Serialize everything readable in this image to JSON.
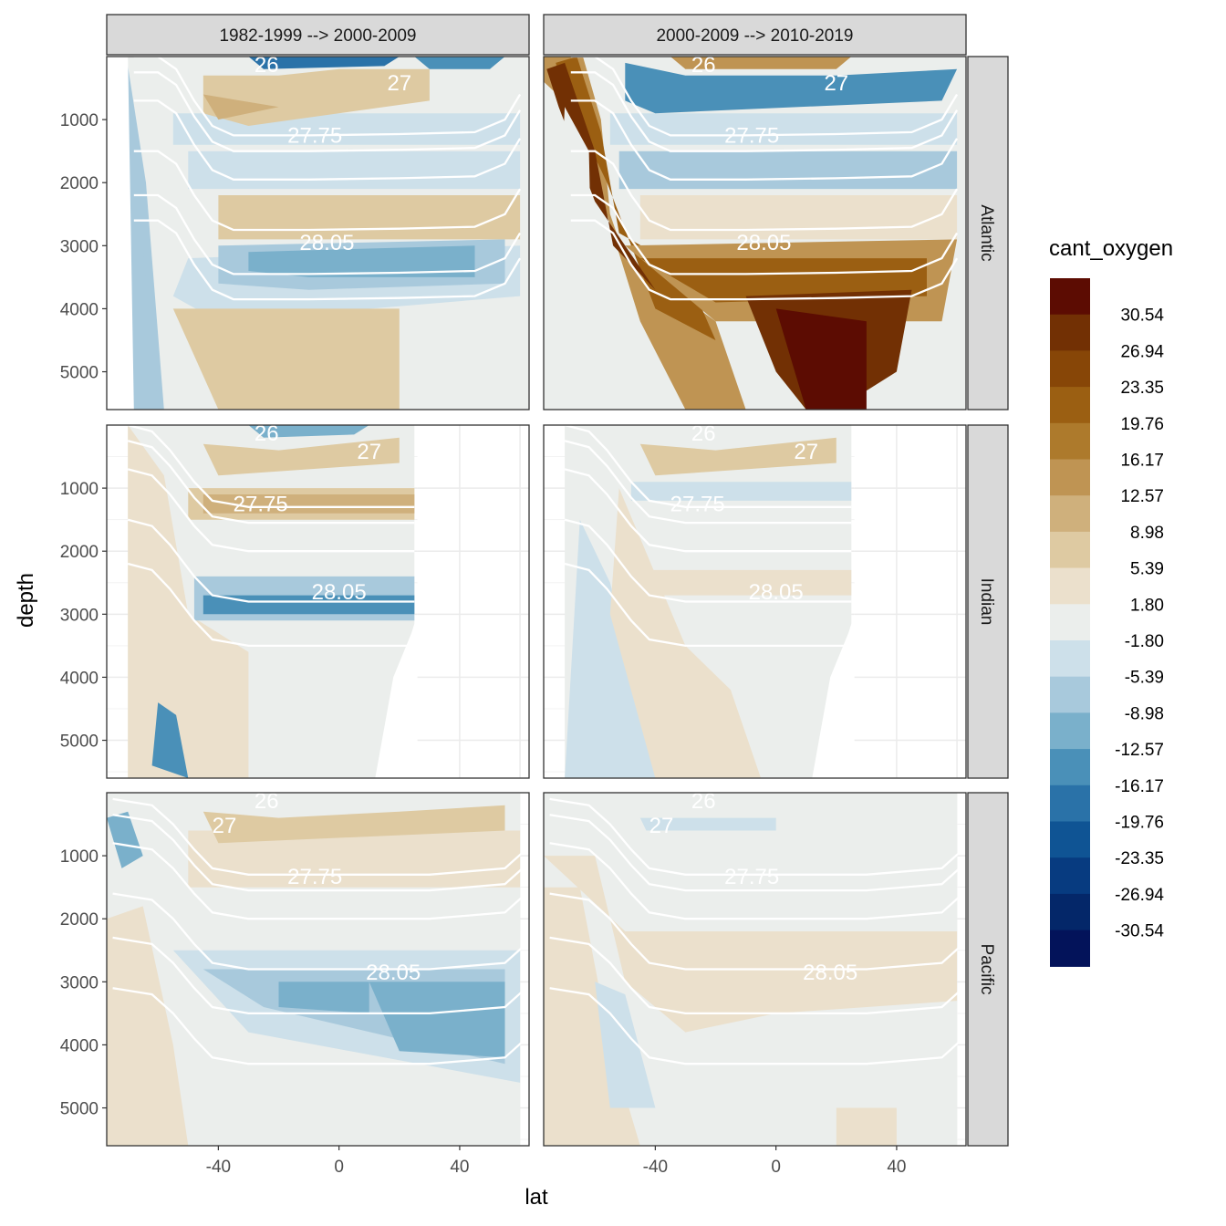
{
  "chart_data": {
    "type": "heatmap",
    "xlabel": "lat",
    "ylabel": "depth",
    "legend_title": "cant_oxygen",
    "columns": [
      "1982-1999 --> 2000-2009",
      "2000-2009 --> 2010-2019"
    ],
    "rows": [
      "Atlantic",
      "Indian",
      "Pacific"
    ],
    "x_ticks": [
      -40,
      0,
      40
    ],
    "y_ticks": [
      1000,
      2000,
      3000,
      4000,
      5000
    ],
    "xlim": [
      -77,
      63
    ],
    "ylim": [
      5600,
      0
    ],
    "legend_breaks": [
      "30.54",
      "26.94",
      "23.35",
      "19.76",
      "16.17",
      "12.57",
      "8.98",
      "5.39",
      "1.80",
      "-1.80",
      "-5.39",
      "-8.98",
      "-12.57",
      "-16.17",
      "-19.76",
      "-23.35",
      "-26.94",
      "-30.54"
    ],
    "legend_colors": [
      "#5c0c02",
      "#723004",
      "#874607",
      "#9b5f12",
      "#ad7a2c",
      "#bf9453",
      "#cfb07c",
      "#decaa2",
      "#ebe0cc",
      "#ebeeec",
      "#cde0ea",
      "#a8c9dc",
      "#7ab0cb",
      "#4a90b8",
      "#2a72a8",
      "#0f5494",
      "#073b80",
      "#042769",
      "#03135a"
    ],
    "isopycnal_labels": [
      "26",
      "27",
      "27.75",
      "28.05"
    ]
  }
}
